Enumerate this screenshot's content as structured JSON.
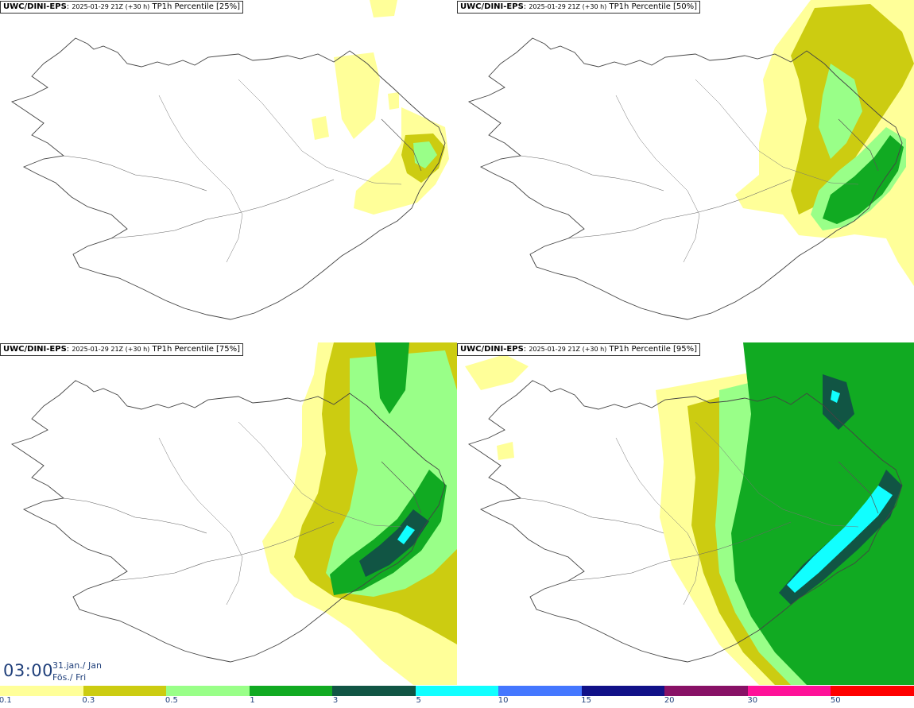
{
  "panels": [
    {
      "source": "UWC/DINI-EPS",
      "run": "2025-01-29 21Z (+30 h)",
      "label": "TP1h Percentile [25%]"
    },
    {
      "source": "UWC/DINI-EPS",
      "run": "2025-01-29 21Z (+30 h)",
      "label": "TP1h Percentile [50%]"
    },
    {
      "source": "UWC/DINI-EPS",
      "run": "2025-01-29 21Z (+30 h)",
      "label": "TP1h Percentile [75%]"
    },
    {
      "source": "UWC/DINI-EPS",
      "run": "2025-01-29 21Z (+30 h)",
      "label": "TP1h Percentile [95%]"
    }
  ],
  "time": {
    "clock": "03:00",
    "date_line": "31.jan./ Jan",
    "day_line": "Fös./ Fri"
  },
  "legend": {
    "colors": [
      "#ffff99",
      "#cccc11",
      "#99ff88",
      "#11aa22",
      "#115544",
      "#11ffff",
      "#4477ff",
      "#111188",
      "#881166",
      "#ff1199",
      "#ff0000"
    ],
    "labels": [
      "0.1",
      "0.3",
      "0.5",
      "1",
      "3",
      "5",
      "10",
      "15",
      "20",
      "30",
      "50"
    ]
  }
}
